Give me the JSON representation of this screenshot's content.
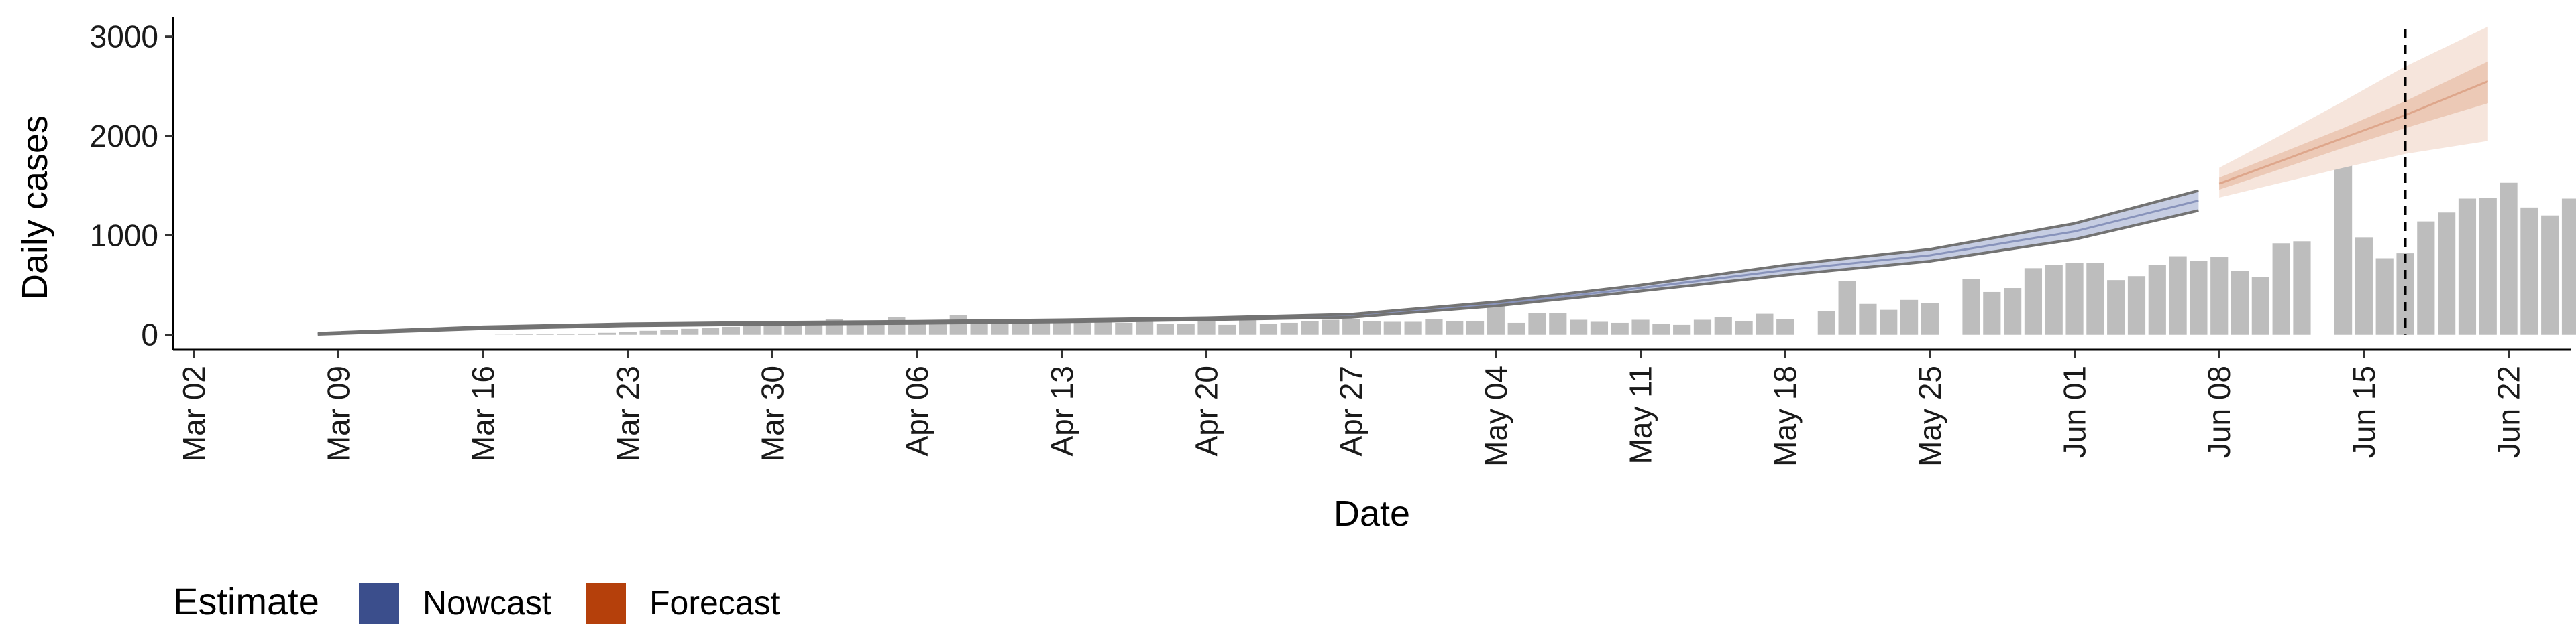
{
  "chart_data": {
    "type": "bar",
    "title": "",
    "xlabel": "Date",
    "ylabel": "Daily cases",
    "xlim": [
      "2020-03-01",
      "2020-06-25"
    ],
    "ylim": [
      -150,
      3200
    ],
    "yticks": [
      0,
      1000,
      2000,
      3000
    ],
    "ytick_labels": [
      "0",
      "1000",
      "2000",
      "3000"
    ],
    "xticks": [
      "2020-03-02",
      "2020-03-09",
      "2020-03-16",
      "2020-03-23",
      "2020-03-30",
      "2020-04-06",
      "2020-04-13",
      "2020-04-20",
      "2020-04-27",
      "2020-05-04",
      "2020-05-11",
      "2020-05-18",
      "2020-05-25",
      "2020-06-01",
      "2020-06-08",
      "2020-06-15",
      "2020-06-22"
    ],
    "xtick_labels": [
      "Mar 02",
      "Mar 09",
      "Mar 16",
      "Mar 23",
      "Mar 30",
      "Apr 06",
      "Apr 13",
      "Apr 20",
      "Apr 27",
      "May 04",
      "May 11",
      "May 18",
      "May 25",
      "Jun 01",
      "Jun 08",
      "Jun 15",
      "Jun 22"
    ],
    "grid": false,
    "legend": {
      "title": "Estimate",
      "placement": "bottom-left",
      "entries": [
        "Nowcast",
        "Forecast"
      ]
    },
    "colors": {
      "bars": "#bdbdbd",
      "nowcast": "#3b4e8c",
      "forecast": "#b5400b",
      "nowcast_ribbon": "#c6cde2",
      "forecast_ribbon_outer": "#f6e5dc",
      "forecast_ribbon_inner": "#ecc9b6",
      "bound_line": "#737373",
      "vline": "#000000"
    },
    "vline_date": "2020-06-17",
    "bars": {
      "start_date": "2020-03-08",
      "values": [
        null,
        null,
        null,
        null,
        null,
        null,
        null,
        null,
        null,
        2,
        6,
        8,
        10,
        12,
        20,
        30,
        40,
        50,
        60,
        70,
        80,
        90,
        100,
        110,
        120,
        160,
        100,
        130,
        180,
        110,
        120,
        200,
        120,
        130,
        140,
        130,
        140,
        120,
        150,
        120,
        130,
        110,
        110,
        160,
        100,
        170,
        110,
        120,
        140,
        150,
        160,
        140,
        130,
        130,
        160,
        140,
        140,
        340,
        120,
        220,
        220,
        150,
        130,
        120,
        150,
        110,
        100,
        150,
        180,
        140,
        210,
        160,
        0,
        240,
        540,
        310,
        250,
        350,
        320,
        0,
        560,
        430,
        470,
        670,
        700,
        720,
        720,
        550,
        590,
        700,
        790,
        740,
        780,
        640,
        580,
        920,
        940,
        0,
        1760,
        980,
        770,
        820,
        1140,
        1230,
        1370,
        1380,
        1530,
        1280,
        1200,
        1370
      ]
    },
    "series": [
      {
        "name": "Nowcast",
        "x": [
          "2020-03-08",
          "2020-03-16",
          "2020-03-23",
          "2020-03-30",
          "2020-04-06",
          "2020-04-13",
          "2020-04-20",
          "2020-04-27",
          "2020-05-04",
          "2020-05-11",
          "2020-05-18",
          "2020-05-25",
          "2020-06-01",
          "2020-06-07"
        ],
        "median": [
          10,
          70,
          100,
          115,
          125,
          140,
          160,
          190,
          310,
          470,
          650,
          800,
          1040,
          1350
        ],
        "upper_90": [
          15,
          80,
          110,
          125,
          135,
          150,
          170,
          205,
          330,
          500,
          700,
          860,
          1120,
          1450
        ],
        "lower_90": [
          5,
          60,
          90,
          105,
          115,
          130,
          150,
          175,
          290,
          440,
          600,
          740,
          960,
          1250
        ]
      },
      {
        "name": "Forecast",
        "x": [
          "2020-06-08",
          "2020-06-11",
          "2020-06-14",
          "2020-06-17",
          "2020-06-21"
        ],
        "median": [
          1520,
          1750,
          1980,
          2210,
          2550
        ],
        "upper_50": [
          1580,
          1830,
          2080,
          2350,
          2750
        ],
        "lower_50": [
          1460,
          1670,
          1880,
          2080,
          2330
        ],
        "upper_90": [
          1680,
          2010,
          2350,
          2700,
          3100
        ],
        "lower_90": [
          1380,
          1530,
          1680,
          1820,
          1950
        ]
      }
    ]
  }
}
